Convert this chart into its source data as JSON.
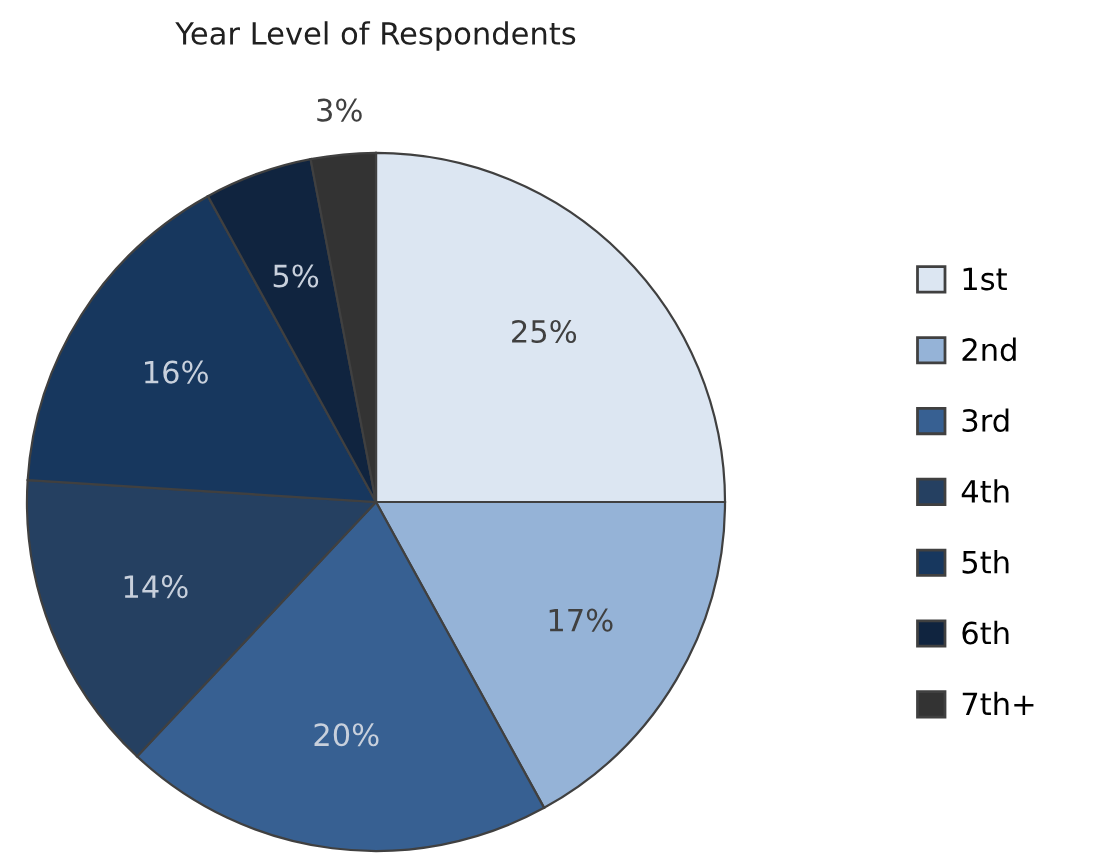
{
  "chart_data": {
    "type": "pie",
    "title": "Year Level of Respondents",
    "categories": [
      "1st",
      "2nd",
      "3rd",
      "4th",
      "5th",
      "6th",
      "7th+"
    ],
    "values": [
      25,
      17,
      20,
      14,
      16,
      5,
      3
    ],
    "colors": [
      "#dce6f2",
      "#95b3d7",
      "#376092",
      "#254061",
      "#17375e",
      "#10243f",
      "#333333"
    ],
    "value_labels": [
      "25%",
      "17%",
      "20%",
      "14%",
      "16%",
      "5%",
      "3%"
    ],
    "legend": "right"
  }
}
